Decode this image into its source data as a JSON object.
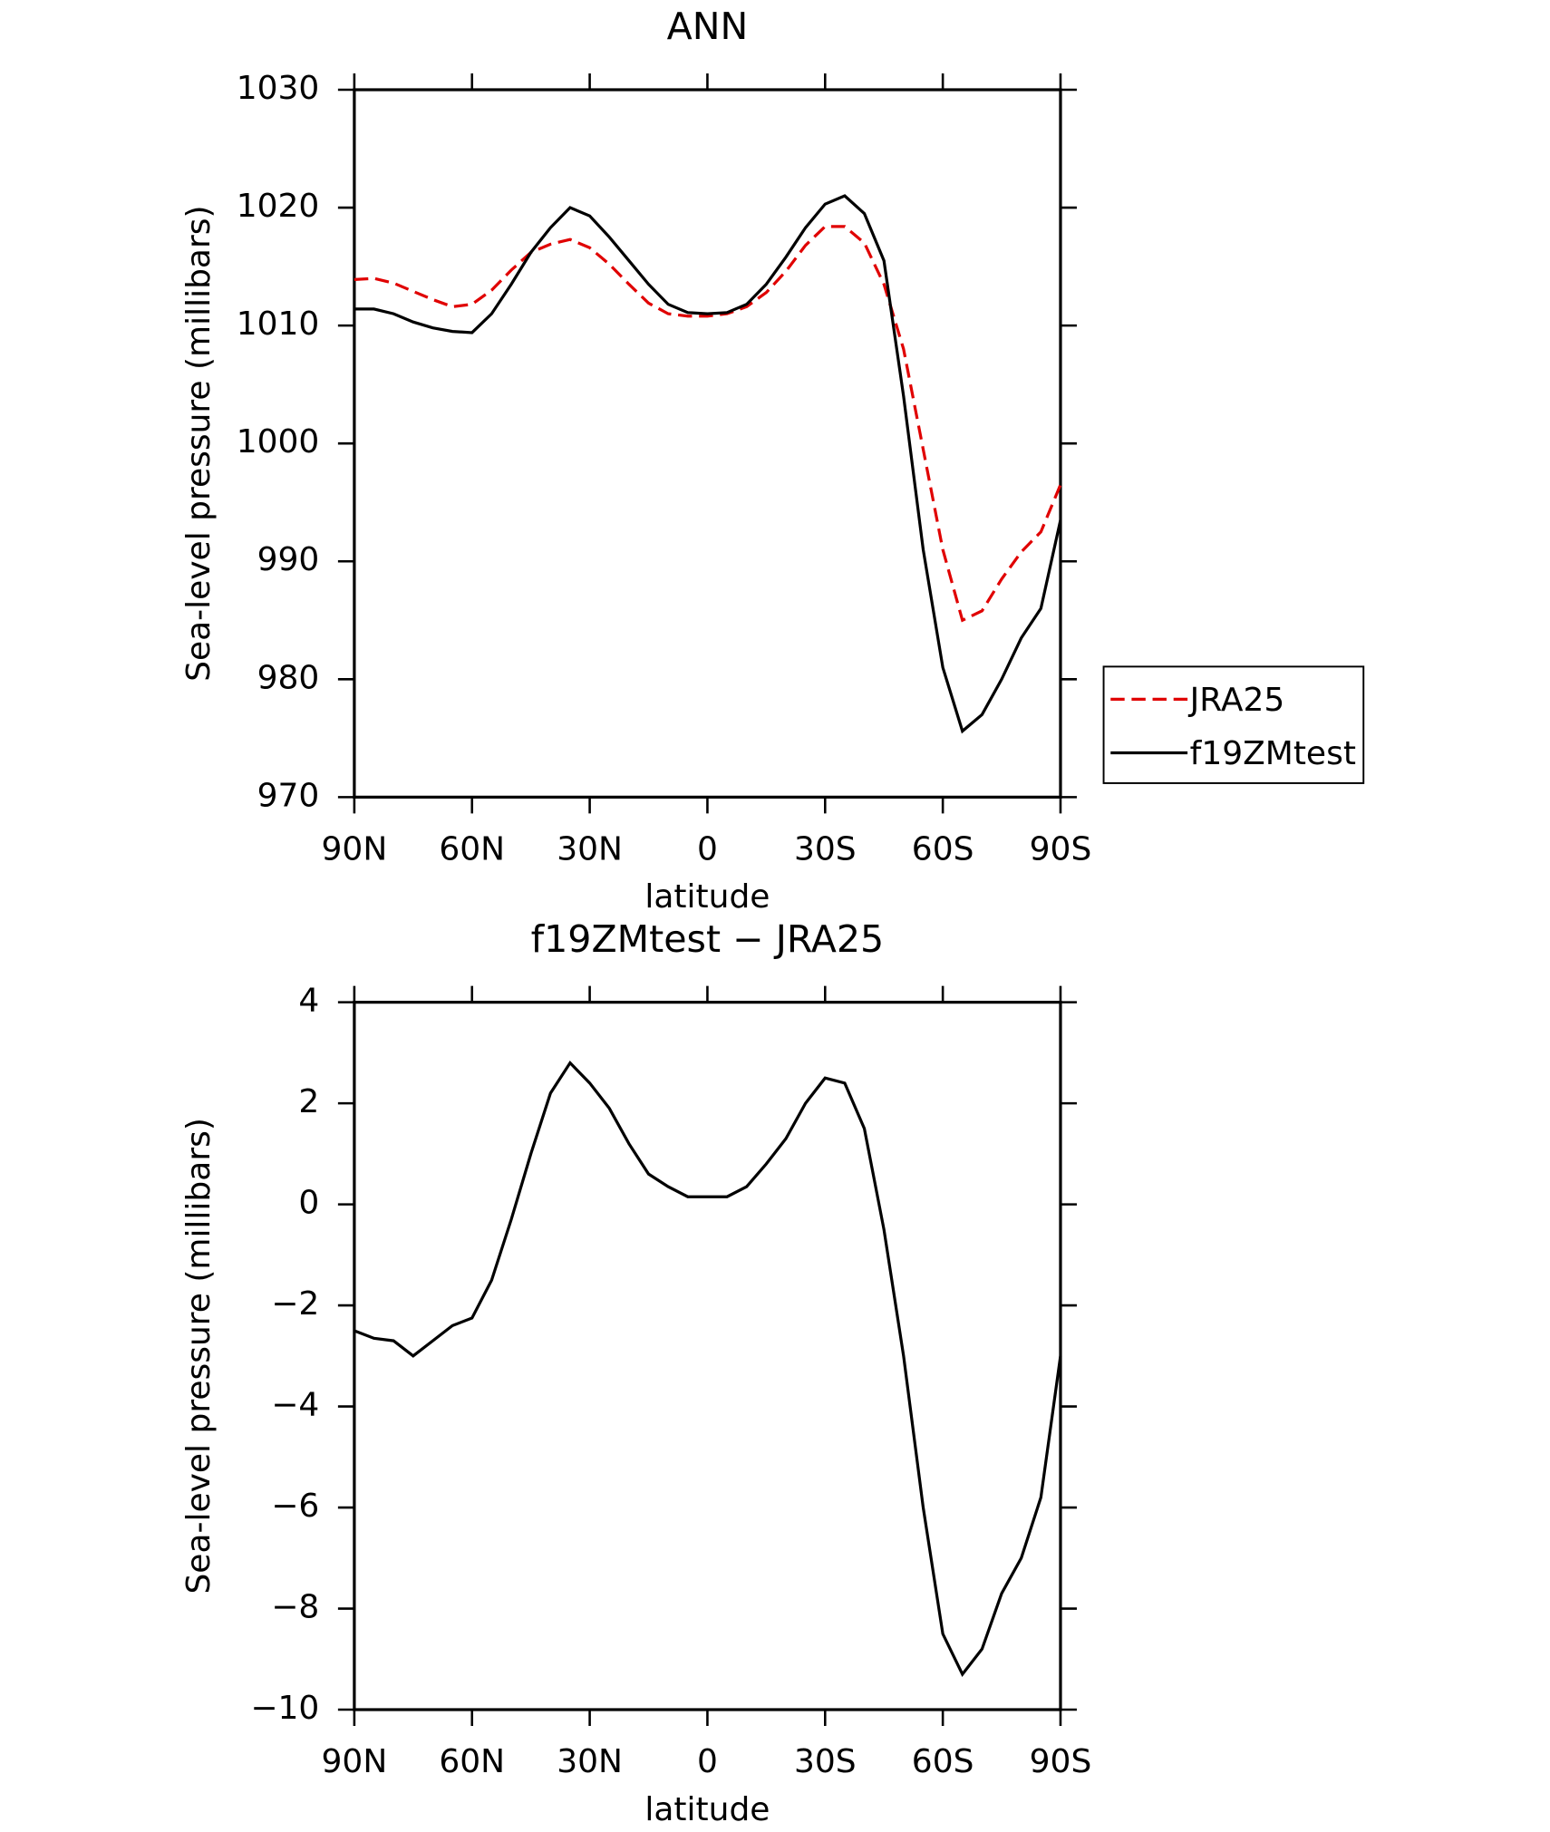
{
  "chart_data": [
    {
      "type": "line",
      "title": "ANN",
      "x_label": "latitude",
      "y_label": "Sea-level pressure (millibars)",
      "x": [
        90,
        85,
        80,
        75,
        70,
        65,
        60,
        55,
        50,
        45,
        40,
        35,
        30,
        25,
        20,
        15,
        10,
        5,
        0,
        -5,
        -10,
        -15,
        -20,
        -25,
        -30,
        -35,
        -40,
        -45,
        -50,
        -55,
        -60,
        -65,
        -70,
        -75,
        -80,
        -85,
        -90
      ],
      "series": [
        {
          "name": "JRA25",
          "color": "#e00000",
          "dash": "dashed",
          "values": [
            1013.9,
            1014.0,
            1013.6,
            1012.9,
            1012.2,
            1011.6,
            1011.8,
            1013.0,
            1014.7,
            1016.2,
            1016.9,
            1017.3,
            1016.6,
            1015.2,
            1013.5,
            1011.9,
            1011.0,
            1010.8,
            1010.8,
            1011.0,
            1011.6,
            1012.8,
            1014.6,
            1016.8,
            1018.4,
            1018.4,
            1017.0,
            1013.5,
            1008.0,
            999.5,
            991.0,
            985.0,
            985.8,
            988.5,
            990.8,
            992.5,
            996.5
          ]
        },
        {
          "name": "f19ZMtest",
          "color": "#000000",
          "dash": "solid",
          "values": [
            1011.4,
            1011.4,
            1011.0,
            1010.3,
            1009.8,
            1009.5,
            1009.4,
            1011.0,
            1013.5,
            1016.2,
            1018.3,
            1020.0,
            1019.3,
            1017.5,
            1015.5,
            1013.5,
            1011.8,
            1011.1,
            1011.0,
            1011.1,
            1011.8,
            1013.5,
            1015.8,
            1018.3,
            1020.3,
            1021.0,
            1019.5,
            1015.5,
            1004.0,
            991.0,
            981.0,
            975.6,
            977.0,
            980.0,
            983.5,
            986.0,
            993.5
          ]
        }
      ],
      "xlim": [
        90,
        -90
      ],
      "xticks": [
        {
          "value": 90,
          "label": "90N"
        },
        {
          "value": 60,
          "label": "60N"
        },
        {
          "value": 30,
          "label": "30N"
        },
        0,
        {
          "value": -30,
          "label": "30S"
        },
        {
          "value": -60,
          "label": "60S"
        },
        {
          "value": -90,
          "label": "90S"
        }
      ],
      "ylim": [
        970,
        1030
      ],
      "yticks": [
        970,
        980,
        990,
        1000,
        1010,
        1020,
        1030
      ],
      "legend": "right"
    },
    {
      "type": "line",
      "title": "f19ZMtest − JRA25",
      "x_label": "latitude",
      "y_label": "Sea-level pressure (millibars)",
      "x": [
        90,
        85,
        80,
        75,
        70,
        65,
        60,
        55,
        50,
        45,
        40,
        35,
        30,
        25,
        20,
        15,
        10,
        5,
        0,
        -5,
        -10,
        -15,
        -20,
        -25,
        -30,
        -35,
        -40,
        -45,
        -50,
        -55,
        -60,
        -65,
        -70,
        -75,
        -80,
        -85,
        -90
      ],
      "series": [
        {
          "color": "#000000",
          "dash": "solid",
          "values": [
            -2.5,
            -2.65,
            -2.7,
            -3.0,
            -2.7,
            -2.4,
            -2.25,
            -1.5,
            -0.3,
            1.0,
            2.2,
            2.8,
            2.4,
            1.9,
            1.2,
            0.6,
            0.35,
            0.15,
            0.15,
            0.15,
            0.35,
            0.8,
            1.3,
            2.0,
            2.5,
            2.4,
            1.5,
            -0.5,
            -3.0,
            -6.0,
            -8.5,
            -9.3,
            -8.8,
            -7.7,
            -7.0,
            -5.8,
            -3.0
          ]
        }
      ],
      "xlim": [
        90,
        -90
      ],
      "xticks": [
        {
          "value": 90,
          "label": "90N"
        },
        {
          "value": 60,
          "label": "60N"
        },
        {
          "value": 30,
          "label": "30N"
        },
        0,
        {
          "value": -30,
          "label": "30S"
        },
        {
          "value": -60,
          "label": "60S"
        },
        {
          "value": -90,
          "label": "90S"
        }
      ],
      "ylim": [
        -10,
        4
      ],
      "yticks": [
        {
          "value": -10,
          "label": "−10"
        },
        {
          "value": -8,
          "label": "−8"
        },
        {
          "value": -6,
          "label": "−6"
        },
        {
          "value": -4,
          "label": "−4"
        },
        {
          "value": -2,
          "label": "−2"
        },
        0,
        2,
        4
      ]
    }
  ]
}
